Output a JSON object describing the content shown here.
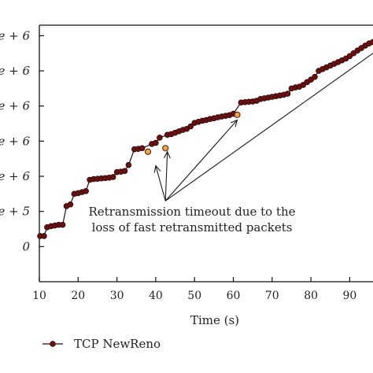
{
  "chart_data": {
    "type": "line",
    "xlabel": "Time (s)",
    "ylabel": "",
    "xlim": [
      10,
      96
    ],
    "ylim": [
      -1,
      6.3
    ],
    "x_ticks": [
      10,
      20,
      30,
      40,
      50,
      60,
      70,
      80,
      90
    ],
    "y_ticks": [
      {
        "value": 0,
        "label": "0"
      },
      {
        "value": 1,
        "label": "e + 5"
      },
      {
        "value": 2,
        "label": "e + 6"
      },
      {
        "value": 3,
        "label": "e + 6"
      },
      {
        "value": 4,
        "label": "e + 6"
      },
      {
        "value": 5,
        "label": "e + 6"
      },
      {
        "value": 6,
        "label": "e + 6"
      }
    ],
    "annotation": {
      "lines": [
        "Retransmission timeout due to the",
        "loss of fast retransmitted packets"
      ],
      "arrow_origin": [
        42.5,
        1.3
      ],
      "arrow_targets": [
        [
          40,
          2.3
        ],
        [
          43,
          2.7
        ],
        [
          61,
          3.6
        ],
        [
          96,
          5.5
        ]
      ]
    },
    "colors": {
      "series_fill": "#6b1010",
      "series_stroke": "#2a0a0a",
      "highlight_fill": "#f0a040",
      "line": "#1a1a1a"
    },
    "series": [
      {
        "name": "TCP NewReno",
        "points": [
          [
            10.2,
            0.3
          ],
          [
            11.2,
            0.3
          ],
          [
            12.0,
            0.55
          ],
          [
            13.0,
            0.58
          ],
          [
            14.0,
            0.6
          ],
          [
            15.0,
            0.62
          ],
          [
            16.0,
            0.62
          ],
          [
            17.0,
            1.15
          ],
          [
            18.0,
            1.2
          ],
          [
            19.0,
            1.5
          ],
          [
            20.0,
            1.52
          ],
          [
            21.0,
            1.55
          ],
          [
            22.0,
            1.58
          ],
          [
            23.0,
            1.9
          ],
          [
            24.0,
            1.92
          ],
          [
            25.0,
            1.93
          ],
          [
            26.0,
            1.94
          ],
          [
            27.0,
            1.95
          ],
          [
            28.0,
            1.96
          ],
          [
            29.0,
            1.98
          ],
          [
            30.0,
            2.12
          ],
          [
            31.0,
            2.13
          ],
          [
            32.0,
            2.15
          ],
          [
            33.0,
            2.32
          ],
          [
            34.5,
            2.77
          ],
          [
            35.5,
            2.78
          ],
          [
            36.5,
            2.8
          ],
          [
            39.0,
            2.92
          ],
          [
            40.0,
            2.95
          ],
          [
            41.0,
            3.1
          ],
          [
            43.0,
            3.18
          ],
          [
            44.0,
            3.2
          ],
          [
            45.0,
            3.24
          ],
          [
            46.0,
            3.28
          ],
          [
            47.0,
            3.32
          ],
          [
            48.0,
            3.35
          ],
          [
            49.0,
            3.42
          ],
          [
            50.0,
            3.52
          ],
          [
            51.0,
            3.55
          ],
          [
            52.0,
            3.58
          ],
          [
            53.0,
            3.6
          ],
          [
            54.0,
            3.63
          ],
          [
            55.0,
            3.65
          ],
          [
            56.0,
            3.68
          ],
          [
            57.0,
            3.7
          ],
          [
            58.0,
            3.72
          ],
          [
            59.0,
            3.74
          ],
          [
            60.0,
            3.78
          ],
          [
            62.0,
            4.1
          ],
          [
            63.0,
            4.11
          ],
          [
            64.0,
            4.12
          ],
          [
            65.0,
            4.13
          ],
          [
            66.0,
            4.15
          ],
          [
            67.0,
            4.2
          ],
          [
            68.0,
            4.22
          ],
          [
            69.0,
            4.24
          ],
          [
            70.0,
            4.26
          ],
          [
            71.0,
            4.28
          ],
          [
            72.0,
            4.3
          ],
          [
            73.0,
            4.32
          ],
          [
            74.0,
            4.35
          ],
          [
            75.0,
            4.5
          ],
          [
            76.0,
            4.53
          ],
          [
            77.0,
            4.55
          ],
          [
            78.0,
            4.6
          ],
          [
            79.0,
            4.68
          ],
          [
            80.0,
            4.75
          ],
          [
            81.0,
            4.83
          ],
          [
            82.0,
            5.0
          ],
          [
            83.0,
            5.05
          ],
          [
            84.0,
            5.1
          ],
          [
            85.0,
            5.15
          ],
          [
            86.0,
            5.2
          ],
          [
            87.0,
            5.25
          ],
          [
            88.0,
            5.3
          ],
          [
            89.0,
            5.35
          ],
          [
            90.0,
            5.42
          ],
          [
            91.0,
            5.5
          ],
          [
            92.0,
            5.58
          ],
          [
            93.0,
            5.65
          ],
          [
            94.0,
            5.72
          ],
          [
            95.0,
            5.78
          ],
          [
            96.0,
            5.82
          ]
        ],
        "highlighted": [
          [
            38.0,
            2.7
          ],
          [
            42.5,
            2.8
          ],
          [
            61.0,
            3.75
          ]
        ]
      }
    ]
  }
}
